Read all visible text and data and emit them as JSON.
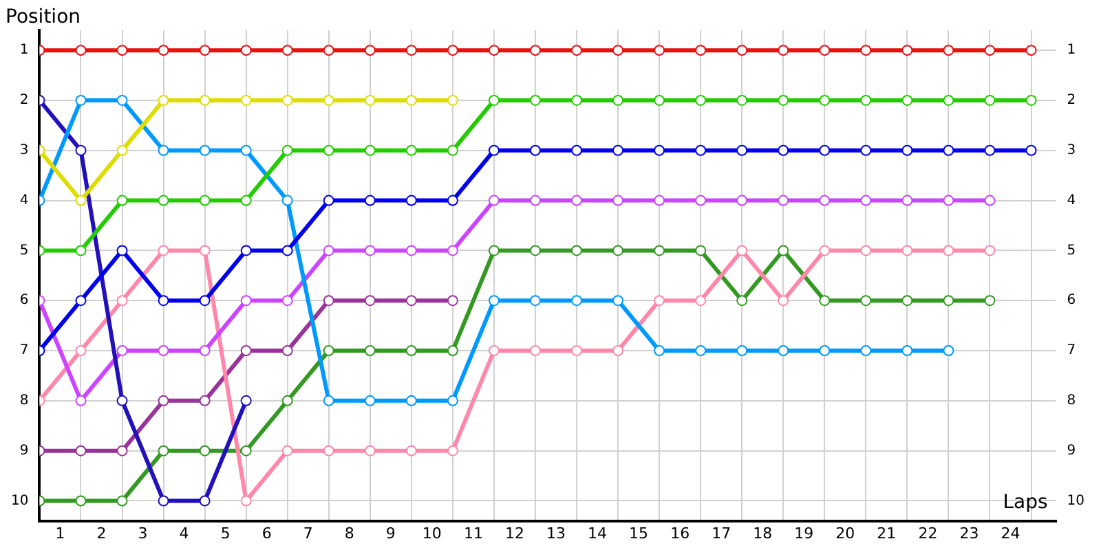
{
  "chart_data": {
    "type": "line",
    "xlabel": "Laps",
    "ylabel": "Position",
    "x": [
      0,
      1,
      2,
      3,
      4,
      5,
      6,
      7,
      8,
      9,
      10,
      11,
      12,
      13,
      14,
      15,
      16,
      17,
      18,
      19,
      20,
      21,
      22,
      23,
      24
    ],
    "series": [
      {
        "color": "#e81010",
        "values": [
          1,
          1,
          1,
          1,
          1,
          1,
          1,
          1,
          1,
          1,
          1,
          1,
          1,
          1,
          1,
          1,
          1,
          1,
          1,
          1,
          1,
          1,
          1,
          1,
          1
        ]
      },
      {
        "color": "#22cc00",
        "values": [
          5,
          5,
          4,
          4,
          4,
          4,
          3,
          3,
          3,
          3,
          3,
          2,
          2,
          2,
          2,
          2,
          2,
          2,
          2,
          2,
          2,
          2,
          2,
          2,
          2
        ]
      },
      {
        "color": "#0000ee",
        "values": [
          7,
          6,
          5,
          6,
          6,
          5,
          5,
          4,
          4,
          4,
          4,
          3,
          3,
          3,
          3,
          3,
          3,
          3,
          3,
          3,
          3,
          3,
          3,
          3,
          3
        ]
      },
      {
        "color": "#dddd00",
        "values": [
          3,
          4,
          3,
          2,
          2,
          2,
          2,
          2,
          2,
          2,
          2,
          null,
          null,
          null,
          null,
          null,
          null,
          null,
          null,
          null,
          null,
          null,
          null,
          null,
          null
        ]
      },
      {
        "color": "#0099ff",
        "values": [
          4,
          2,
          2,
          3,
          3,
          3,
          4,
          8,
          8,
          8,
          8,
          6,
          6,
          6,
          6,
          7,
          7,
          7,
          7,
          7,
          7,
          7,
          7,
          null,
          null
        ]
      },
      {
        "color": "#2211bb",
        "values": [
          2,
          3,
          8,
          10,
          10,
          8,
          null,
          null,
          null,
          null,
          null,
          null,
          null,
          null,
          null,
          null,
          null,
          null,
          null,
          null,
          null,
          null,
          null,
          null,
          null
        ]
      },
      {
        "color": "#cc44ff",
        "values": [
          6,
          8,
          7,
          7,
          7,
          6,
          6,
          5,
          5,
          5,
          5,
          4,
          4,
          4,
          4,
          4,
          4,
          4,
          4,
          4,
          4,
          4,
          4,
          4,
          null
        ]
      },
      {
        "color": "#ff88aa",
        "values": [
          8,
          7,
          6,
          5,
          5,
          10,
          9,
          9,
          9,
          9,
          9,
          7,
          7,
          7,
          7,
          6,
          6,
          5,
          6,
          5,
          5,
          5,
          5,
          5,
          null
        ]
      },
      {
        "color": "#339922",
        "values": [
          10,
          10,
          10,
          9,
          9,
          9,
          8,
          7,
          7,
          7,
          7,
          5,
          5,
          5,
          5,
          5,
          5,
          6,
          5,
          6,
          6,
          6,
          6,
          6,
          null
        ]
      },
      {
        "color": "#993399",
        "values": [
          9,
          9,
          9,
          8,
          8,
          7,
          7,
          6,
          6,
          6,
          6,
          null,
          null,
          null,
          null,
          null,
          null,
          null,
          null,
          null,
          null,
          null,
          null,
          null,
          null
        ]
      }
    ],
    "xlim": [
      0,
      24.6
    ],
    "xticks": [
      {
        "value": 0,
        "label": null
      },
      {
        "value": 0.5,
        "label": "1"
      },
      {
        "value": 1,
        "label": null
      },
      {
        "value": 1.5,
        "label": "2"
      },
      {
        "value": 2,
        "label": null
      },
      {
        "value": 2.5,
        "label": "3"
      },
      {
        "value": 3,
        "label": null
      },
      {
        "value": 3.5,
        "label": "4"
      },
      {
        "value": 4,
        "label": null
      },
      {
        "value": 4.5,
        "label": "5"
      },
      {
        "value": 5,
        "label": null
      },
      {
        "value": 5.5,
        "label": "6"
      },
      {
        "value": 6,
        "label": null
      },
      {
        "value": 6.5,
        "label": "7"
      },
      {
        "value": 7,
        "label": null
      },
      {
        "value": 7.5,
        "label": "8"
      },
      {
        "value": 8,
        "label": null
      },
      {
        "value": 8.5,
        "label": "9"
      },
      {
        "value": 9,
        "label": null
      },
      {
        "value": 9.5,
        "label": "10"
      },
      {
        "value": 10,
        "label": null
      },
      {
        "value": 10.5,
        "label": "11"
      },
      {
        "value": 11,
        "label": null
      },
      {
        "value": 11.5,
        "label": "12"
      },
      {
        "value": 12,
        "label": null
      },
      {
        "value": 12.5,
        "label": "13"
      },
      {
        "value": 13,
        "label": null
      },
      {
        "value": 13.5,
        "label": "14"
      },
      {
        "value": 14,
        "label": null
      },
      {
        "value": 14.5,
        "label": "15"
      },
      {
        "value": 15,
        "label": null
      },
      {
        "value": 15.5,
        "label": "16"
      },
      {
        "value": 16,
        "label": null
      },
      {
        "value": 16.5,
        "label": "17"
      },
      {
        "value": 17,
        "label": null
      },
      {
        "value": 17.5,
        "label": "18"
      },
      {
        "value": 18,
        "label": null
      },
      {
        "value": 18.5,
        "label": "19"
      },
      {
        "value": 19,
        "label": null
      },
      {
        "value": 19.5,
        "label": "20"
      },
      {
        "value": 20,
        "label": null
      },
      {
        "value": 20.5,
        "label": "21"
      },
      {
        "value": 21,
        "label": null
      },
      {
        "value": 21.5,
        "label": "22"
      },
      {
        "value": 22,
        "label": null
      },
      {
        "value": 22.5,
        "label": "23"
      },
      {
        "value": 23,
        "label": null
      },
      {
        "value": 23.5,
        "label": "24"
      },
      {
        "value": 24,
        "label": null
      }
    ],
    "ylim": [
      10.4,
      0.6
    ],
    "yticks": [
      1,
      2,
      3,
      4,
      5,
      6,
      7,
      8,
      9,
      10
    ],
    "y2lim": [
      10.4,
      0.6
    ],
    "y2ticks": [
      1,
      2,
      3,
      4,
      5,
      6,
      7,
      8,
      9,
      10
    ],
    "grid": true,
    "legend": false,
    "marker": "circle",
    "line_style": "solid"
  }
}
